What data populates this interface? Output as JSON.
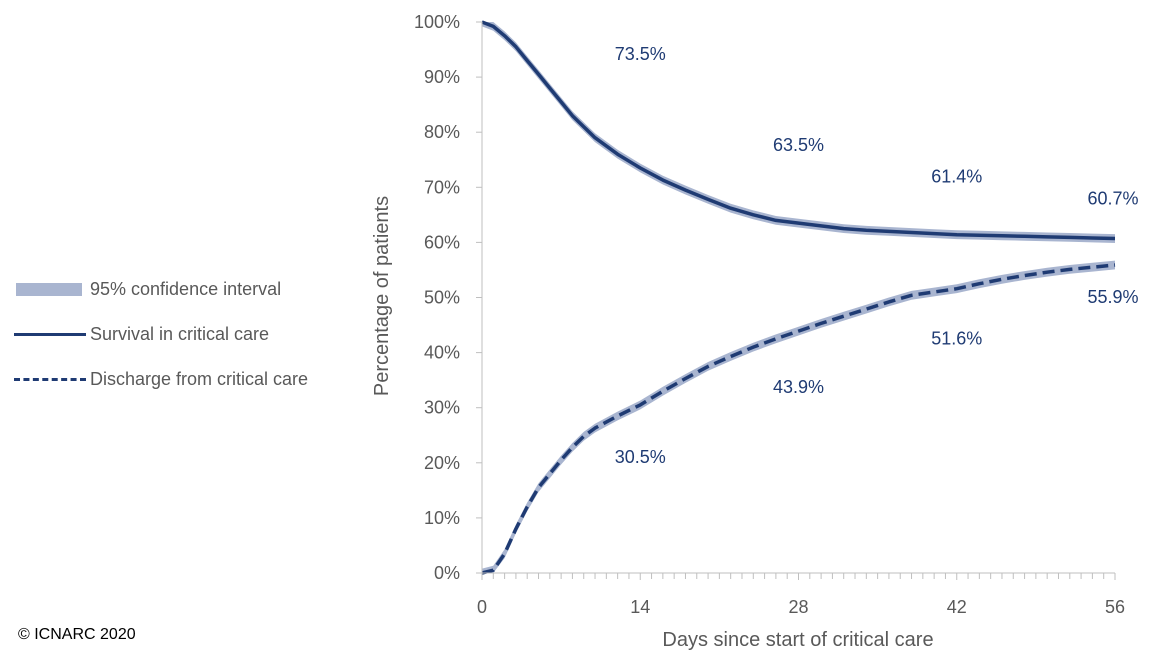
{
  "chart_data": {
    "type": "line",
    "xlabel": "Days since start of critical care",
    "ylabel": "Percentage of patients",
    "xlim": [
      0,
      56
    ],
    "ylim": [
      0,
      100
    ],
    "x_ticks": [
      0,
      14,
      28,
      42,
      56
    ],
    "x_tick_labels": [
      "0",
      "14",
      "28",
      "42",
      "56"
    ],
    "y_ticks": [
      0,
      10,
      20,
      30,
      40,
      50,
      60,
      70,
      80,
      90,
      100
    ],
    "y_tick_labels": [
      "0%",
      "10%",
      "20%",
      "30%",
      "40%",
      "50%",
      "60%",
      "70%",
      "80%",
      "90%",
      "100%"
    ],
    "grid": false,
    "legend_position": "left",
    "series": [
      {
        "name": "Survival in critical care",
        "style": "solid",
        "x": [
          0,
          1,
          2,
          3,
          4,
          5,
          6,
          7,
          8,
          9,
          10,
          12,
          14,
          16,
          18,
          20,
          22,
          24,
          26,
          28,
          30,
          32,
          34,
          36,
          38,
          40,
          42,
          44,
          46,
          48,
          50,
          52,
          54,
          56
        ],
        "y": [
          100,
          99.2,
          97.5,
          95.5,
          93,
          90.5,
          88,
          85.5,
          83,
          81,
          79,
          76,
          73.5,
          71.3,
          69.5,
          67.8,
          66.2,
          65,
          64,
          63.5,
          63,
          62.5,
          62.2,
          62,
          61.8,
          61.6,
          61.4,
          61.3,
          61.2,
          61.1,
          61,
          60.9,
          60.8,
          60.7
        ]
      },
      {
        "name": "Discharge from critical care",
        "style": "dashed",
        "x": [
          0,
          1,
          2,
          3,
          4,
          5,
          6,
          7,
          8,
          9,
          10,
          12,
          14,
          16,
          18,
          20,
          22,
          24,
          26,
          28,
          30,
          32,
          34,
          36,
          38,
          40,
          42,
          44,
          46,
          48,
          50,
          52,
          54,
          56
        ],
        "y": [
          0,
          0.5,
          3.5,
          8,
          12,
          15.5,
          18,
          20.5,
          22.8,
          24.8,
          26.3,
          28.5,
          30.5,
          33,
          35.3,
          37.5,
          39.3,
          41,
          42.5,
          43.9,
          45.3,
          46.6,
          47.9,
          49.2,
          50.4,
          51,
          51.6,
          52.5,
          53.3,
          54,
          54.6,
          55.1,
          55.5,
          55.9
        ]
      }
    ],
    "confidence_interval": {
      "name": "95% confidence interval",
      "half_width": 0.8
    },
    "annotations": [
      {
        "x": 14,
        "y": 73.5,
        "text": "73.5%",
        "series": "Survival in critical care"
      },
      {
        "x": 28,
        "y": 63.5,
        "text": "63.5%",
        "series": "Survival in critical care"
      },
      {
        "x": 42,
        "y": 61.4,
        "text": "61.4%",
        "series": "Survival in critical care"
      },
      {
        "x": 56,
        "y": 60.7,
        "text": "60.7%",
        "series": "Survival in critical care"
      },
      {
        "x": 14,
        "y": 30.5,
        "text": "30.5%",
        "series": "Discharge from critical care"
      },
      {
        "x": 28,
        "y": 43.9,
        "text": "43.9%",
        "series": "Discharge from critical care"
      },
      {
        "x": 42,
        "y": 51.6,
        "text": "51.6%",
        "series": "Discharge from critical care"
      },
      {
        "x": 56,
        "y": 55.9,
        "text": "55.9%",
        "series": "Discharge from critical care"
      }
    ]
  },
  "legend": {
    "items": [
      {
        "label": "95% confidence interval",
        "kind": "band"
      },
      {
        "label": "Survival in critical care",
        "kind": "solid"
      },
      {
        "label": "Discharge from critical care",
        "kind": "dashed"
      }
    ]
  },
  "footer": {
    "copyright": "© ICNARC 2020"
  },
  "colors": {
    "line": "#1F3B73",
    "band": "#A9B5D0",
    "axis": "#BFBFBF",
    "text": "#595959",
    "data_label": "#1F3B73"
  }
}
